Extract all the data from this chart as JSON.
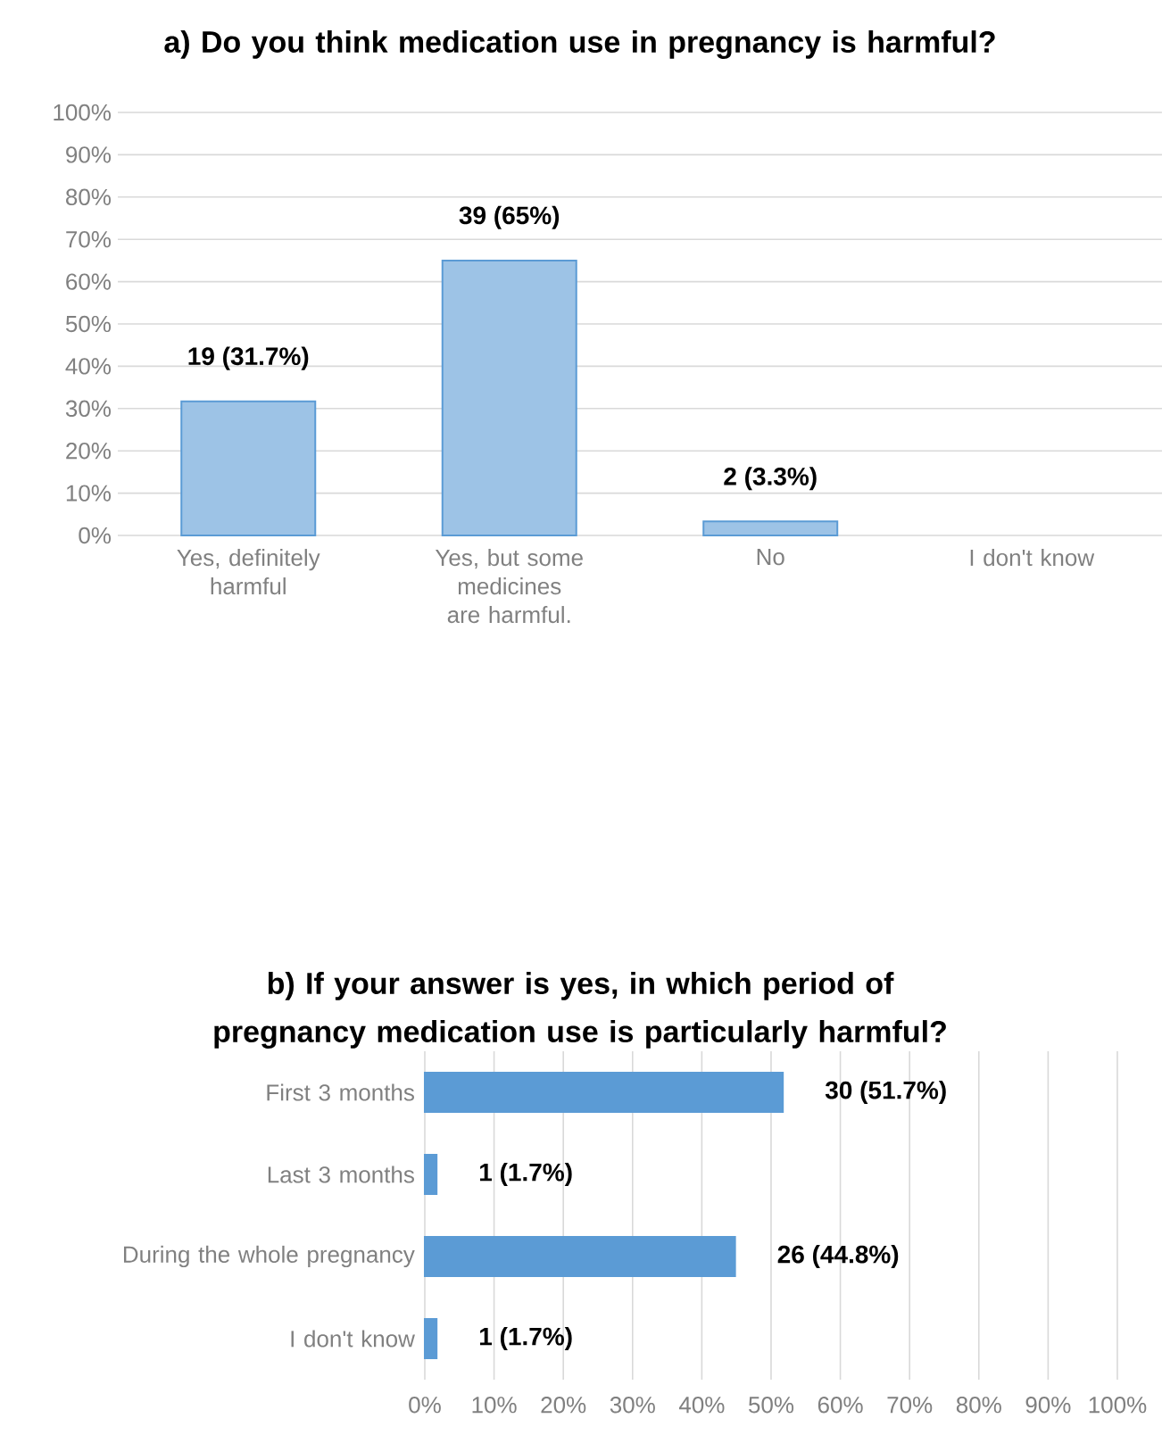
{
  "chart_data": [
    {
      "type": "bar",
      "title": "a) Do you think medication use in pregnancy is harmful?",
      "categories": [
        "Yes, definitely harmful",
        "Yes, but some medicines are harmful.",
        "No",
        "I don't know"
      ],
      "values": [
        31.7,
        65,
        3.3,
        null
      ],
      "value_labels": [
        "19 (31.7%)",
        "39 (65%)",
        "2 (3.3%)",
        null
      ],
      "color": "#9dc3e6",
      "ylim": [
        0,
        100
      ],
      "yticks": [
        {
          "value": 0,
          "label": "0%"
        },
        {
          "value": 10,
          "label": "10%"
        },
        {
          "value": 20,
          "label": "20%"
        },
        {
          "value": 30,
          "label": "30%"
        },
        {
          "value": 40,
          "label": "40%"
        },
        {
          "value": 50,
          "label": "50%"
        },
        {
          "value": 60,
          "label": "60%"
        },
        {
          "value": 70,
          "label": "70%"
        },
        {
          "value": 80,
          "label": "80%"
        },
        {
          "value": 90,
          "label": "90%"
        },
        {
          "value": 100,
          "label": "100%"
        }
      ],
      "grid": "y"
    },
    {
      "type": "bar",
      "orientation": "horizontal",
      "title": "b) If your answer is yes, in which period of pregnancy medication use is particularly harmful?",
      "categories": [
        "First 3 months",
        "Last 3 months",
        "During the whole pregnancy",
        "I don't know"
      ],
      "values": [
        51.7,
        1.7,
        44.8,
        1.7
      ],
      "value_labels": [
        "30 (51.7%)",
        "1 (1.7%)",
        "26 (44.8%)",
        "1 (1.7%)"
      ],
      "color": "#5b9bd5",
      "xlim": [
        0,
        100
      ],
      "xticks": [
        {
          "value": 0,
          "label": "0%"
        },
        {
          "value": 10,
          "label": "10%"
        },
        {
          "value": 20,
          "label": "20%"
        },
        {
          "value": 30,
          "label": "30%"
        },
        {
          "value": 40,
          "label": "40%"
        },
        {
          "value": 50,
          "label": "50%"
        },
        {
          "value": 60,
          "label": "60%"
        },
        {
          "value": 70,
          "label": "70%"
        },
        {
          "value": 80,
          "label": "80%"
        },
        {
          "value": 90,
          "label": "90%"
        },
        {
          "value": 100,
          "label": "100%"
        }
      ],
      "grid": "x"
    }
  ]
}
